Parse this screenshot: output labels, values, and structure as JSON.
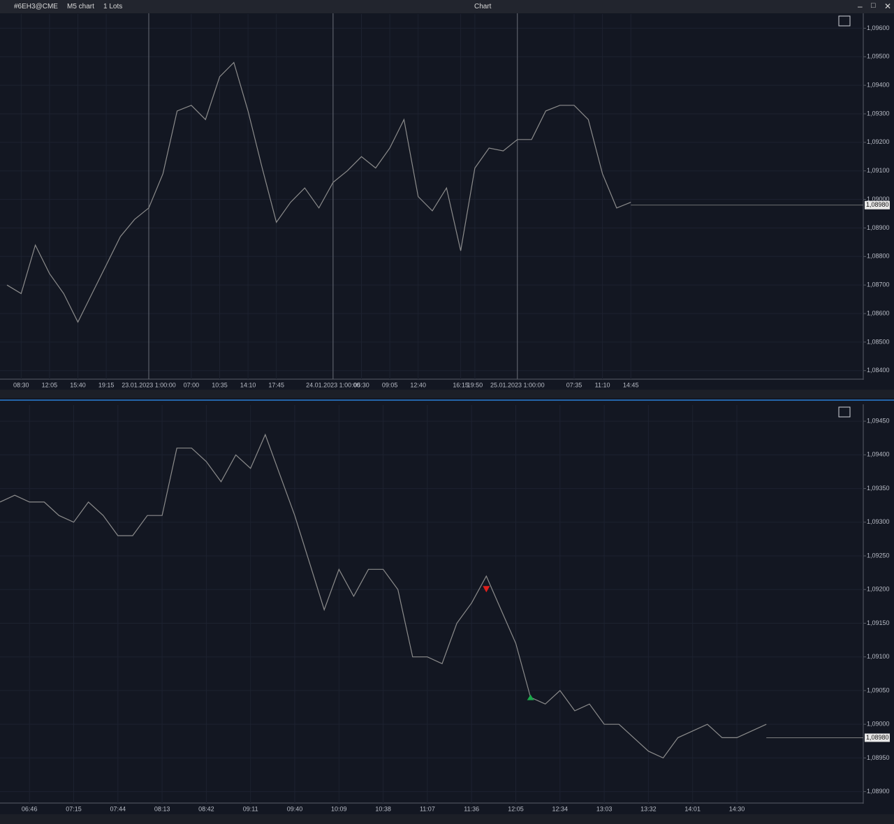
{
  "toolbar": {
    "symbol": "#6EH3@CME",
    "timeframe": "M5 chart",
    "lots": "1 Lots",
    "title": "Chart"
  },
  "chart_data": [
    {
      "type": "line",
      "color": "#8c8c8c",
      "grid": true,
      "categories": [
        null,
        "08:30",
        null,
        "12:05",
        null,
        "15:40",
        null,
        "19:15",
        null,
        null,
        "23.01.2023 1:00:00",
        null,
        null,
        "07:00",
        null,
        "10:35",
        null,
        "14:10",
        null,
        "17:45",
        null,
        null,
        null,
        "24.01.2023 1:00:00",
        null,
        "05:30",
        null,
        "09:05",
        null,
        "12:40",
        null,
        null,
        "16:15",
        "19:50",
        null,
        null,
        "25.01.2023 1:00:00",
        null,
        null,
        null,
        "07:35",
        null,
        "11:10",
        null,
        "14:45"
      ],
      "values": [
        1.087,
        1.0867,
        1.0884,
        1.0874,
        1.0867,
        1.0857,
        1.0867,
        1.0877,
        1.0887,
        1.0893,
        1.0897,
        1.0909,
        1.0931,
        1.0933,
        1.0928,
        1.0943,
        1.0948,
        1.0931,
        1.0911,
        1.0892,
        1.0899,
        1.0904,
        1.0897,
        1.0906,
        1.091,
        1.0915,
        1.0911,
        1.0918,
        1.0928,
        1.0901,
        1.0896,
        1.0904,
        1.0882,
        1.0911,
        1.0918,
        1.0917,
        1.0921,
        1.0921,
        1.0931,
        1.0933,
        1.0933,
        1.0928,
        1.0909,
        1.0897,
        1.0899
      ],
      "separators": [
        10,
        23,
        36
      ],
      "ylim": [
        1.0837,
        1.0965
      ],
      "yticks": [
        {
          "value": 1.084,
          "label": "1,08400"
        },
        {
          "value": 1.085,
          "label": "1,08500"
        },
        {
          "value": 1.086,
          "label": "1,08600"
        },
        {
          "value": 1.087,
          "label": "1,08700"
        },
        {
          "value": 1.088,
          "label": "1,08800"
        },
        {
          "value": 1.089,
          "label": "1,08900"
        },
        {
          "value": 1.09,
          "label": "1,09000"
        },
        {
          "value": 1.091,
          "label": "1,09100"
        },
        {
          "value": 1.092,
          "label": "1,09200"
        },
        {
          "value": 1.093,
          "label": "1,09300"
        },
        {
          "value": 1.094,
          "label": "1,09400"
        },
        {
          "value": 1.095,
          "label": "1,09500"
        },
        {
          "value": 1.096,
          "label": "1,09600"
        }
      ],
      "last_price": {
        "value": 1.0898,
        "label": "1,08980"
      }
    },
    {
      "type": "line",
      "color": "#8c8c8c",
      "grid": true,
      "categories": [
        null,
        null,
        "06:46",
        null,
        null,
        "07:15",
        null,
        null,
        "07:44",
        null,
        null,
        "08:13",
        null,
        null,
        "08:42",
        null,
        null,
        "09:11",
        null,
        null,
        "09:40",
        null,
        null,
        "10:09",
        null,
        null,
        "10:38",
        null,
        null,
        "11:07",
        null,
        null,
        "11:36",
        null,
        null,
        "12:05",
        null,
        null,
        "12:34",
        null,
        null,
        "13:03",
        null,
        null,
        "13:32",
        null,
        null,
        "14:01",
        null,
        null,
        "14:30",
        null,
        null
      ],
      "values": [
        1.0933,
        1.0934,
        1.0933,
        1.0933,
        1.0931,
        1.093,
        1.0933,
        1.0931,
        1.0928,
        1.0928,
        1.0931,
        1.0931,
        1.0941,
        1.0941,
        1.0939,
        1.0936,
        1.094,
        1.0938,
        1.0943,
        1.0937,
        1.0931,
        1.0924,
        1.0917,
        1.0923,
        1.0919,
        1.0923,
        1.0923,
        1.092,
        1.091,
        1.091,
        1.0909,
        1.0915,
        1.0918,
        1.0922,
        1.0917,
        1.0912,
        1.0904,
        1.0903,
        1.0905,
        1.0902,
        1.0903,
        1.09,
        1.09,
        1.0898,
        1.0896,
        1.0895,
        1.0898,
        1.0899,
        1.09,
        1.0898,
        1.0898,
        1.0899,
        1.09
      ],
      "signals": [
        {
          "index": 33,
          "value": 1.092,
          "direction": "down",
          "color": "#e0201c"
        },
        {
          "index": 36,
          "value": 1.0904,
          "direction": "up",
          "color": "#1aa84a"
        }
      ],
      "ylim": [
        1.08883,
        1.09474
      ],
      "yticks": [
        {
          "value": 1.089,
          "label": "1,08900"
        },
        {
          "value": 1.0895,
          "label": "1,08950"
        },
        {
          "value": 1.09,
          "label": "1,09000"
        },
        {
          "value": 1.0905,
          "label": "1,09050"
        },
        {
          "value": 1.091,
          "label": "1,09100"
        },
        {
          "value": 1.0915,
          "label": "1,09150"
        },
        {
          "value": 1.092,
          "label": "1,09200"
        },
        {
          "value": 1.0925,
          "label": "1,09250"
        },
        {
          "value": 1.093,
          "label": "1,09300"
        },
        {
          "value": 1.0935,
          "label": "1,09350"
        },
        {
          "value": 1.094,
          "label": "1,09400"
        },
        {
          "value": 1.0945,
          "label": "1,09450"
        }
      ],
      "last_price": {
        "value": 1.0898,
        "label": "1,08980"
      }
    }
  ]
}
